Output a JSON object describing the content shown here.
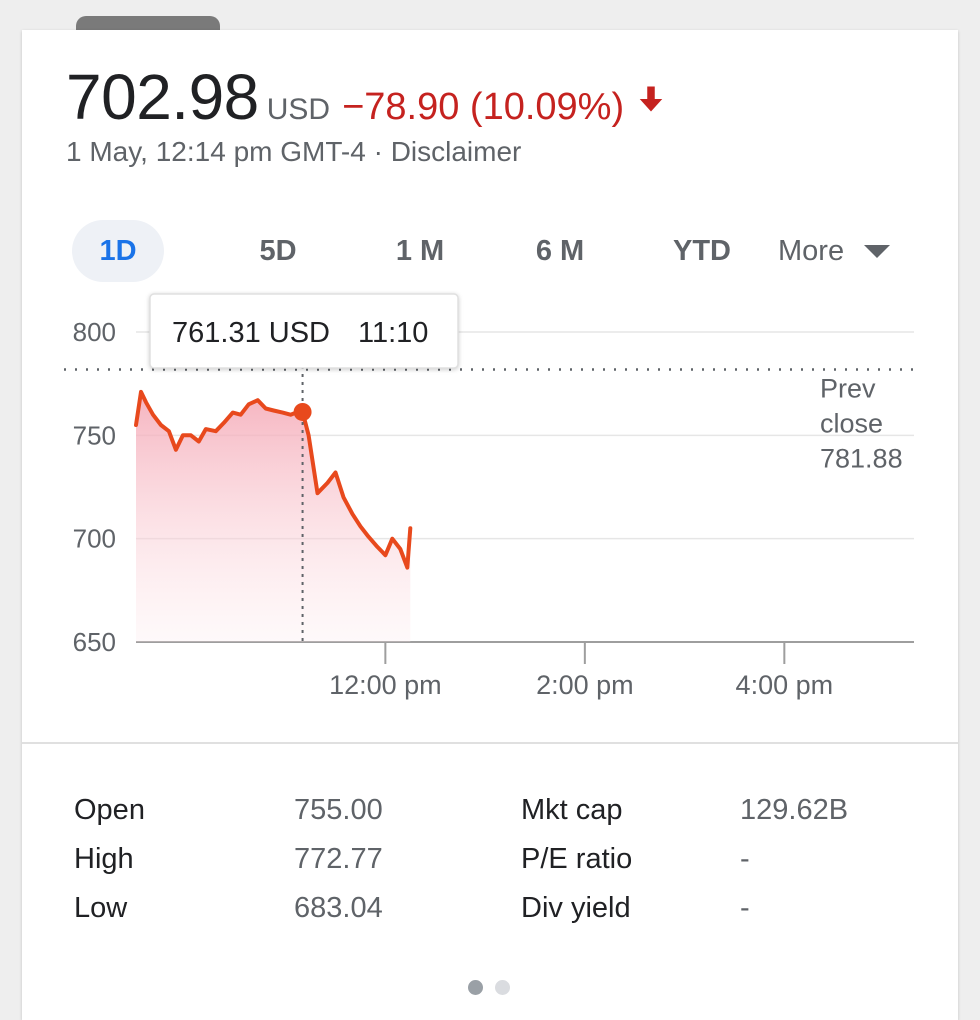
{
  "quote": {
    "price": "702.98",
    "currency": "USD",
    "change": "−78.90 (10.09%)",
    "timestamp": "1 May, 12:14 pm GMT-4 · Disclaimer",
    "colors": {
      "negative": "#c5221f",
      "line": "#e8491d",
      "accent": "#1a73e8"
    }
  },
  "tabs": [
    {
      "label": "1D",
      "selected": true
    },
    {
      "label": "5D",
      "selected": false
    },
    {
      "label": "1 M",
      "selected": false
    },
    {
      "label": "6 M",
      "selected": false
    },
    {
      "label": "YTD",
      "selected": false
    },
    {
      "label": "More",
      "selected": false
    }
  ],
  "chart_data": {
    "type": "area",
    "y_ticks": [
      "800",
      "750",
      "700",
      "650"
    ],
    "ylim": [
      650,
      800
    ],
    "x_tick_labels": [
      "12:00 pm",
      "2:00 pm",
      "4:00 pm"
    ],
    "x_tick_hours": [
      12,
      14,
      16
    ],
    "xlim": [
      9.5,
      17.3
    ],
    "grid": true,
    "prev_close": {
      "value": 781.88,
      "label_line1": "Prev",
      "label_line2": "close",
      "label_value": "781.88"
    },
    "tooltip": {
      "price": "761.31 USD",
      "time": "11:10",
      "hour": 11.17,
      "value": 761.31
    },
    "series": [
      {
        "points": [
          [
            9.5,
            755
          ],
          [
            9.55,
            771
          ],
          [
            9.6,
            766
          ],
          [
            9.67,
            760
          ],
          [
            9.75,
            755
          ],
          [
            9.83,
            752
          ],
          [
            9.9,
            743
          ],
          [
            9.97,
            750
          ],
          [
            10.05,
            750
          ],
          [
            10.13,
            747
          ],
          [
            10.2,
            753
          ],
          [
            10.3,
            752
          ],
          [
            10.38,
            756
          ],
          [
            10.47,
            761
          ],
          [
            10.55,
            760
          ],
          [
            10.63,
            765
          ],
          [
            10.72,
            767
          ],
          [
            10.8,
            763
          ],
          [
            10.88,
            762
          ],
          [
            10.97,
            761
          ],
          [
            11.05,
            760
          ],
          [
            11.12,
            761.31
          ],
          [
            11.17,
            761.31
          ],
          [
            11.23,
            750
          ],
          [
            11.32,
            722
          ],
          [
            11.42,
            727
          ],
          [
            11.5,
            732
          ],
          [
            11.58,
            720
          ],
          [
            11.67,
            712
          ],
          [
            11.75,
            706
          ],
          [
            11.83,
            701
          ],
          [
            11.92,
            696
          ],
          [
            12.0,
            692
          ],
          [
            12.07,
            700
          ],
          [
            12.15,
            695
          ],
          [
            12.22,
            686
          ],
          [
            12.25,
            705
          ]
        ]
      }
    ]
  },
  "stats": [
    {
      "label": "Open",
      "value": "755.00",
      "label2": "Mkt cap",
      "value2": "129.62B"
    },
    {
      "label": "High",
      "value": "772.77",
      "label2": "P/E ratio",
      "value2": "-"
    },
    {
      "label": "Low",
      "value": "683.04",
      "label2": "Div yield",
      "value2": "-"
    }
  ]
}
